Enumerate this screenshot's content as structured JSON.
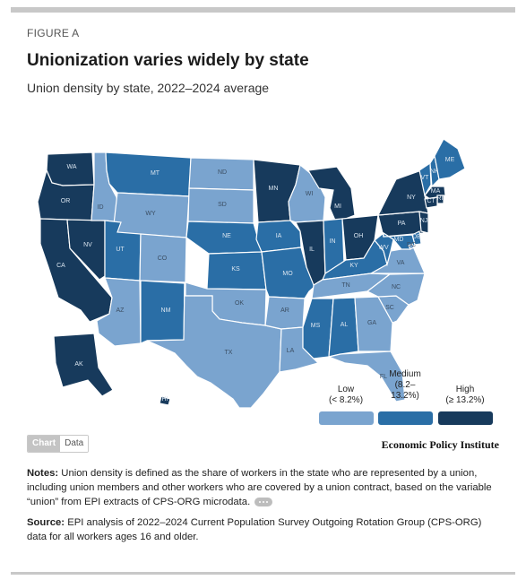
{
  "figure_label": "FIGURE A",
  "title": "Unionization varies widely by state",
  "subtitle": "Union density by state, 2022–2024 average",
  "colors": {
    "low": "#7aa4cf",
    "medium": "#2a6ea6",
    "high": "#173a5c"
  },
  "legend": {
    "low_name": "Low",
    "low_range": "(< 8.2%)",
    "medium_name": "Medium",
    "medium_range": "(8.2–",
    "medium_range2": "13.2%)",
    "high_name": "High",
    "high_range": "(≥ 13.2%)"
  },
  "map_data": {
    "states": [
      {
        "abbr": "WA",
        "category": "high"
      },
      {
        "abbr": "OR",
        "category": "high"
      },
      {
        "abbr": "CA",
        "category": "high"
      },
      {
        "abbr": "NV",
        "category": "high"
      },
      {
        "abbr": "ID",
        "category": "low"
      },
      {
        "abbr": "MT",
        "category": "medium"
      },
      {
        "abbr": "WY",
        "category": "low"
      },
      {
        "abbr": "UT",
        "category": "medium"
      },
      {
        "abbr": "CO",
        "category": "low"
      },
      {
        "abbr": "AZ",
        "category": "low"
      },
      {
        "abbr": "NM",
        "category": "medium"
      },
      {
        "abbr": "ND",
        "category": "low"
      },
      {
        "abbr": "SD",
        "category": "low"
      },
      {
        "abbr": "NE",
        "category": "medium"
      },
      {
        "abbr": "KS",
        "category": "medium"
      },
      {
        "abbr": "OK",
        "category": "low"
      },
      {
        "abbr": "TX",
        "category": "low"
      },
      {
        "abbr": "MN",
        "category": "high"
      },
      {
        "abbr": "IA",
        "category": "medium"
      },
      {
        "abbr": "MO",
        "category": "medium"
      },
      {
        "abbr": "AR",
        "category": "low"
      },
      {
        "abbr": "LA",
        "category": "low"
      },
      {
        "abbr": "WI",
        "category": "low"
      },
      {
        "abbr": "IL",
        "category": "high"
      },
      {
        "abbr": "MI",
        "category": "high"
      },
      {
        "abbr": "IN",
        "category": "medium"
      },
      {
        "abbr": "OH",
        "category": "high"
      },
      {
        "abbr": "KY",
        "category": "medium"
      },
      {
        "abbr": "TN",
        "category": "low"
      },
      {
        "abbr": "MS",
        "category": "medium"
      },
      {
        "abbr": "AL",
        "category": "medium"
      },
      {
        "abbr": "GA",
        "category": "low"
      },
      {
        "abbr": "FL",
        "category": "low"
      },
      {
        "abbr": "SC",
        "category": "low"
      },
      {
        "abbr": "NC",
        "category": "low"
      },
      {
        "abbr": "VA",
        "category": "low"
      },
      {
        "abbr": "WV",
        "category": "medium"
      },
      {
        "abbr": "PA",
        "category": "high"
      },
      {
        "abbr": "NY",
        "category": "high"
      },
      {
        "abbr": "VT",
        "category": "medium"
      },
      {
        "abbr": "NH",
        "category": "medium"
      },
      {
        "abbr": "ME",
        "category": "medium"
      },
      {
        "abbr": "MA",
        "category": "high"
      },
      {
        "abbr": "RI",
        "category": "high"
      },
      {
        "abbr": "CT",
        "category": "high"
      },
      {
        "abbr": "NJ",
        "category": "high"
      },
      {
        "abbr": "DE",
        "category": "medium"
      },
      {
        "abbr": "MD",
        "category": "medium"
      },
      {
        "abbr": "DC",
        "category": "low"
      },
      {
        "abbr": "AK",
        "category": "high"
      },
      {
        "abbr": "HI",
        "category": "high"
      }
    ]
  },
  "toggle": {
    "chart_label": "Chart",
    "data_label": "Data"
  },
  "brand": "Economic Policy Institute",
  "notes": {
    "label": "Notes:",
    "text": "Union density is defined as the share of workers in the state who are represented by a union, including union members and other workers who are covered by a union contract, based on the variable “union” from EPI extracts of CPS-ORG microdata."
  },
  "source": {
    "label": "Source:",
    "text": "EPI analysis of 2022–2024 Current Population Survey Outgoing Rotation Group (CPS-ORG) data for all workers ages 16 and older."
  }
}
